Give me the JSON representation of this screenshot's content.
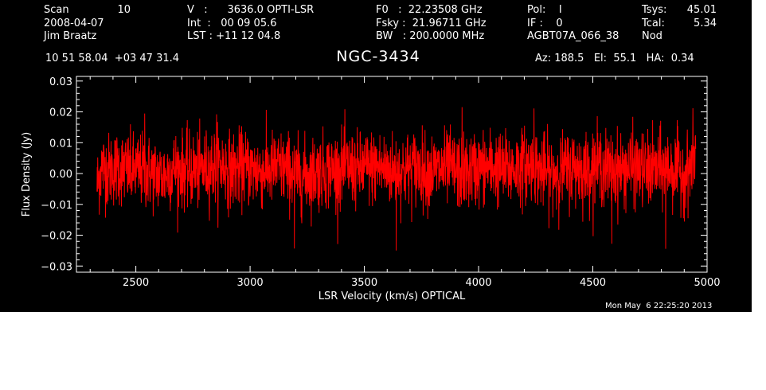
{
  "header": {
    "col1": [
      "Scan",
      "2008-04-07",
      "Jim Braatz"
    ],
    "scan_number": "10",
    "col2": [
      "V   :      3636.0 OPTI-LSR",
      "Int  :   00 09 05.6",
      "LST : +11 12 04.8"
    ],
    "col3": [
      "F0   :  22.23508 GHz",
      "Fsky :  21.96711 GHz",
      "BW   : 200.0000 MHz"
    ],
    "col4": [
      "Pol:    I",
      "IF :    0",
      "AGBT07A_066_38"
    ],
    "col5_labels": [
      "Tsys:",
      "Tcal:",
      "Nod"
    ],
    "col5_values": [
      "45.01",
      "5.34",
      ""
    ],
    "coords": "10 51 58.04  +03 47 31.4",
    "source": "NGC-3434",
    "pointing": "Az: 188.5   El:  55.1   HA:  0.34",
    "timestamp": "Mon May  6 22:25:20 2013"
  },
  "colors": {
    "background": "#000000",
    "foreground": "#ffffff",
    "trace": "#ff0000"
  },
  "chart_data": {
    "type": "line",
    "xlabel": "LSR Velocity (km/s) OPTICAL",
    "ylabel": "Flux Density (Jy)",
    "xlim": [
      2240,
      5000
    ],
    "ylim": [
      -0.032,
      0.0315
    ],
    "xticks": [
      2500,
      3000,
      3500,
      4000,
      4500,
      5000
    ],
    "yticks": [
      -0.03,
      -0.02,
      -0.01,
      0.0,
      0.01,
      0.02,
      0.03
    ],
    "ytick_labels": [
      "−0.03",
      "−0.02",
      "−0.01",
      "0.00",
      "0.01",
      "0.02",
      "0.03"
    ],
    "grid": false,
    "series": [
      {
        "x": [
          2330,
          2350,
          2380,
          2420,
          2470,
          2520,
          2570,
          2620,
          2670,
          2720,
          2770,
          2820,
          2870,
          2920,
          2970,
          3020,
          3070,
          3120,
          3170,
          3220,
          3270,
          3320,
          3370,
          3420,
          3470,
          3520,
          3570,
          3620,
          3670,
          3720,
          3770,
          3820,
          3870,
          3920,
          3970,
          4020,
          4070,
          4120,
          4170,
          4220,
          4270,
          4320,
          4370,
          4420,
          4470,
          4520,
          4570,
          4620,
          4670,
          4720,
          4770,
          4820,
          4870,
          4910,
          4940,
          4950
        ],
        "y": [
          -0.004,
          0.002,
          0.001,
          0.002,
          0.001,
          0.001,
          0.0,
          -0.001,
          0.002,
          0.001,
          0.001,
          0.002,
          0.003,
          0.001,
          0.002,
          0.001,
          0.001,
          0.002,
          0.001,
          -0.001,
          0.0,
          0.001,
          0.001,
          0.002,
          0.001,
          0.002,
          0.002,
          0.001,
          0.001,
          0.002,
          0.001,
          0.001,
          0.002,
          0.0,
          0.001,
          0.002,
          0.002,
          0.001,
          0.002,
          0.003,
          0.001,
          0.0,
          0.001,
          0.002,
          0.001,
          0.003,
          0.001,
          0.001,
          0.002,
          0.001,
          0.001,
          0.002,
          0.001,
          0.0,
          0.004,
          0.008
        ],
        "noise_rms": 0.006,
        "min": -0.027,
        "max": 0.024
      }
    ]
  }
}
